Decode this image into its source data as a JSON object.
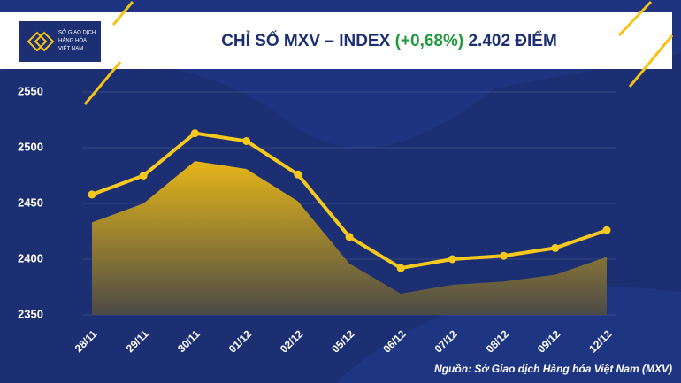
{
  "header": {
    "logo_line1": "SỞ GIAO DỊCH",
    "logo_line2": "HÀNG HÓA",
    "logo_line3": "VIỆT NAM"
  },
  "chart_data": {
    "type": "line",
    "title_prefix": "CHỈ SỐ MXV – INDEX",
    "title_change": "(+0,68%)",
    "title_suffix": "2.402 ĐIỂM",
    "source": "Nguồn: Sở Giao dịch Hàng hóa Việt Nam (MXV)",
    "categories": [
      "28/11",
      "29/11",
      "30/11",
      "01/12",
      "02/12",
      "05/12",
      "06/12",
      "07/12",
      "08/12",
      "09/12",
      "12/12"
    ],
    "series": [
      {
        "style": "area",
        "color": "#e8b818",
        "values": [
          2433,
          2450,
          2488,
          2481,
          2452,
          2396,
          2369,
          2377,
          2380,
          2386,
          2402
        ]
      },
      {
        "style": "line",
        "color": "#f7c91c",
        "values": [
          2458,
          2475,
          2513,
          2506,
          2476,
          2420,
          2392,
          2400,
          2403,
          2410,
          2426
        ]
      }
    ],
    "ylim": [
      2350,
      2550
    ],
    "yticks": [
      2350,
      2400,
      2450,
      2500,
      2550
    ],
    "grid": true
  }
}
